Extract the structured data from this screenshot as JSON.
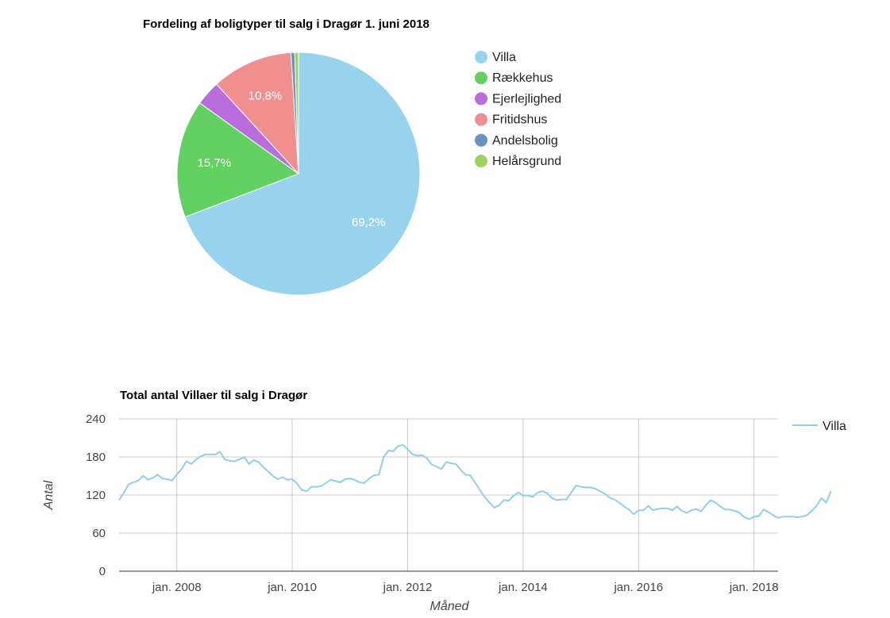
{
  "chart_data": [
    {
      "type": "pie",
      "title": "Fordeling af boligtyper til salg i Dragør 1. juni 2018",
      "legend_position": "right",
      "slices": [
        {
          "name": "Villa",
          "value": 69.2,
          "label": "69,2%",
          "color": "#97d3ec"
        },
        {
          "name": "Rækkehus",
          "value": 15.7,
          "label": "15,7%",
          "color": "#62d162"
        },
        {
          "name": "Ejerlejlighed",
          "value": 3.3,
          "label": "",
          "color": "#b96cdb"
        },
        {
          "name": "Fritidshus",
          "value": 10.8,
          "label": "10,8%",
          "color": "#ef908f"
        },
        {
          "name": "Andelsbolig",
          "value": 0.5,
          "label": "",
          "color": "#6a95c2"
        },
        {
          "name": "Helårsgrund",
          "value": 0.5,
          "label": "",
          "color": "#9ed364"
        }
      ]
    },
    {
      "type": "line",
      "title": "Total antal Villaer til salg i Dragør",
      "xlabel": "Måned",
      "ylabel": "Antal",
      "ylim": [
        0,
        240
      ],
      "yticks": [
        "0",
        "60",
        "120",
        "180",
        "240"
      ],
      "grid": true,
      "legend_position": "right",
      "xrange": [
        "2007-01",
        "2018-06"
      ],
      "xticks": [
        {
          "date": "2008-01",
          "label": "jan. 2008"
        },
        {
          "date": "2010-01",
          "label": "jan. 2010"
        },
        {
          "date": "2012-01",
          "label": "jan. 2012"
        },
        {
          "date": "2014-01",
          "label": "jan. 2014"
        },
        {
          "date": "2016-01",
          "label": "jan. 2016"
        },
        {
          "date": "2018-01",
          "label": "jan. 2018"
        }
      ],
      "series": [
        {
          "name": "Villa",
          "color": "#8fcfea",
          "start": "2007-01",
          "values": [
            112,
            124,
            137,
            140,
            143,
            150,
            144,
            147,
            152,
            146,
            145,
            143,
            152,
            161,
            173,
            169,
            176,
            181,
            184,
            184,
            184,
            188,
            176,
            174,
            173,
            176,
            180,
            169,
            175,
            172,
            164,
            157,
            150,
            145,
            148,
            144,
            145,
            138,
            128,
            126,
            133,
            133,
            134,
            139,
            144,
            142,
            140,
            145,
            146,
            144,
            140,
            139,
            146,
            151,
            152,
            180,
            190,
            189,
            197,
            199,
            192,
            184,
            182,
            183,
            178,
            168,
            165,
            161,
            172,
            170,
            169,
            160,
            152,
            151,
            140,
            128,
            117,
            108,
            100,
            104,
            112,
            111,
            119,
            124,
            119,
            119,
            117,
            124,
            126,
            123,
            115,
            112,
            113,
            113,
            124,
            135,
            133,
            132,
            132,
            130,
            126,
            122,
            116,
            113,
            108,
            102,
            97,
            90,
            96,
            96,
            103,
            96,
            98,
            99,
            99,
            96,
            102,
            95,
            92,
            96,
            98,
            94,
            104,
            112,
            108,
            102,
            97,
            97,
            95,
            92,
            85,
            82,
            86,
            87,
            97,
            93,
            88,
            84,
            86,
            86,
            86,
            85,
            86,
            88,
            95,
            103,
            115,
            108,
            126
          ]
        }
      ]
    }
  ]
}
